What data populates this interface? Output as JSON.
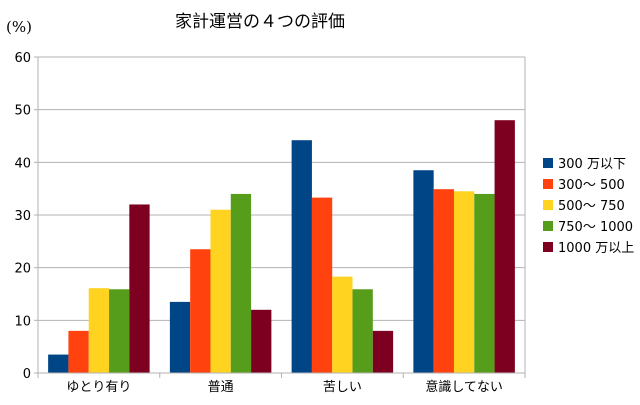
{
  "chart_data": {
    "type": "bar",
    "title": "家計運営の４つの評価",
    "ylabel": "(%)",
    "xlabel": "",
    "ylim": [
      0,
      60
    ],
    "yticks": [
      0,
      10,
      20,
      30,
      40,
      50,
      60
    ],
    "grid": true,
    "legend_position": "right",
    "categories": [
      "ゆとり有り",
      "普通",
      "苦しい",
      "意識してない"
    ],
    "series": [
      {
        "name": "300 万以下",
        "color": "#004586",
        "values": [
          3.5,
          13.5,
          44.2,
          38.5
        ]
      },
      {
        "name": "300～ 500",
        "color": "#ff420e",
        "values": [
          8.0,
          23.5,
          33.3,
          34.9
        ]
      },
      {
        "name": "500～ 750",
        "color": "#ffd320",
        "values": [
          16.1,
          31.0,
          18.3,
          34.5
        ]
      },
      {
        "name": "750～ 1000",
        "color": "#579d1c",
        "values": [
          15.9,
          34.0,
          15.9,
          34.0
        ]
      },
      {
        "name": "1000 万以上",
        "color": "#7e0021",
        "values": [
          32.0,
          12.0,
          8.0,
          48.0
        ]
      }
    ]
  }
}
